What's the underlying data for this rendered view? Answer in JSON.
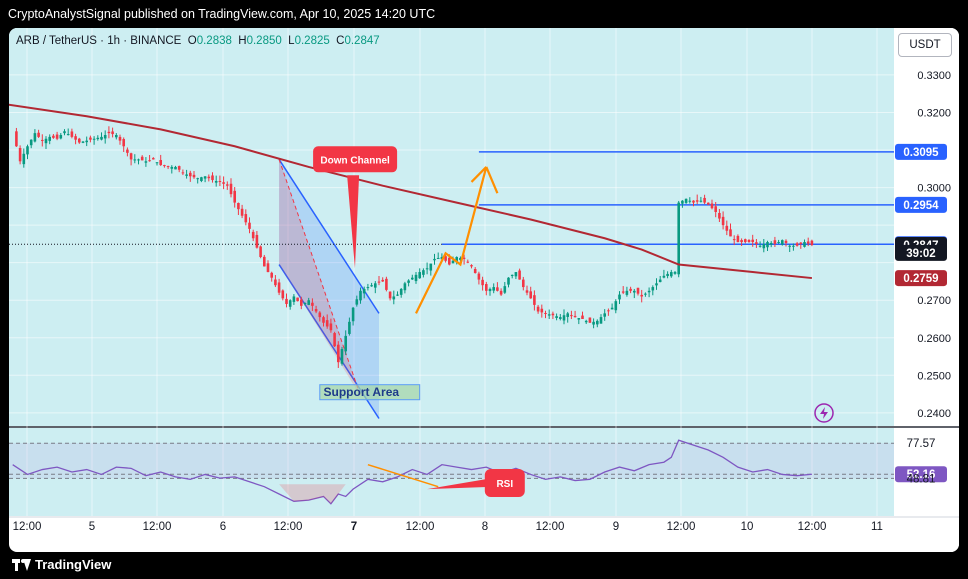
{
  "header": {
    "publisher_line": "CryptoAnalystSignal published on TradingView.com, Apr 10, 2025 14:20 UTC"
  },
  "footer": {
    "brand": "TradingView"
  },
  "legend": {
    "symbol": "ARB / TetherUS · 1h · BINANCE",
    "o_label": "O",
    "o": "0.2838",
    "h_label": "H",
    "h": "0.2850",
    "l_label": "L",
    "l": "0.2825",
    "c_label": "C",
    "c": "0.2847"
  },
  "currency_button": "USDT",
  "colors": {
    "up": "#089981",
    "down": "#f23645",
    "ma": "#b22833",
    "line_blue": "#2962ff",
    "arrow_orange": "#ff8f00",
    "rsi": "#7e57c2",
    "bg_teal": "#cdeef2"
  },
  "chart_data": [
    {
      "type": "candlestick",
      "title": "",
      "symbol": "ARB / TetherUS",
      "timeframe": "1h",
      "exchange": "BINANCE",
      "ohlc_last": {
        "open": 0.2838,
        "high": 0.285,
        "low": 0.2825,
        "close": 0.2847
      },
      "ylim": [
        0.2365,
        0.3425
      ],
      "y_ticks": [
        0.33,
        0.32,
        0.31,
        0.3,
        0.29,
        0.28,
        0.27,
        0.26,
        0.25,
        0.24
      ],
      "y_tick_labels": [
        "0.3300",
        "0.3200",
        "",
        "0.3000",
        "",
        "",
        "0.2700",
        "0.2600",
        "0.2500",
        "0.2400"
      ],
      "x_ticks": [
        "12:00",
        "5",
        "12:00",
        "6",
        "12:00",
        "7",
        "12:00",
        "8",
        "12:00",
        "9",
        "12:00",
        "10",
        "12:00",
        "11"
      ],
      "close_path": [
        [
          0,
          0.315
        ],
        [
          2,
          0.307
        ],
        [
          4,
          0.311
        ],
        [
          6,
          0.3145
        ],
        [
          8,
          0.3125
        ],
        [
          10,
          0.3135
        ],
        [
          12,
          0.313
        ],
        [
          14,
          0.315
        ],
        [
          16,
          0.3135
        ],
        [
          18,
          0.312
        ],
        [
          20,
          0.3125
        ],
        [
          22,
          0.313
        ],
        [
          24,
          0.3135
        ],
        [
          26,
          0.3145
        ],
        [
          28,
          0.314
        ],
        [
          30,
          0.311
        ],
        [
          32,
          0.3075
        ],
        [
          34,
          0.3075
        ],
        [
          36,
          0.307
        ],
        [
          38,
          0.3075
        ],
        [
          40,
          0.306
        ],
        [
          42,
          0.3055
        ],
        [
          44,
          0.3055
        ],
        [
          46,
          0.304
        ],
        [
          48,
          0.303
        ],
        [
          50,
          0.3025
        ],
        [
          52,
          0.303
        ],
        [
          54,
          0.302
        ],
        [
          56,
          0.3015
        ],
        [
          58,
          0.3005
        ],
        [
          60,
          0.296
        ],
        [
          62,
          0.2925
        ],
        [
          64,
          0.289
        ],
        [
          66,
          0.284
        ],
        [
          68,
          0.279
        ],
        [
          70,
          0.276
        ],
        [
          72,
          0.272
        ],
        [
          74,
          0.269
        ],
        [
          76,
          0.271
        ],
        [
          78,
          0.2685
        ],
        [
          80,
          0.27
        ],
        [
          82,
          0.267
        ],
        [
          84,
          0.264
        ],
        [
          86,
          0.262
        ],
        [
          88,
          0.2535
        ],
        [
          90,
          0.2605
        ],
        [
          92,
          0.268
        ],
        [
          94,
          0.2725
        ],
        [
          96,
          0.2735
        ],
        [
          98,
          0.2745
        ],
        [
          100,
          0.275
        ],
        [
          102,
          0.2705
        ],
        [
          104,
          0.2715
        ],
        [
          106,
          0.2745
        ],
        [
          108,
          0.276
        ],
        [
          110,
          0.2775
        ],
        [
          112,
          0.2785
        ],
        [
          114,
          0.281
        ],
        [
          116,
          0.2815
        ],
        [
          118,
          0.2795
        ],
        [
          120,
          0.2815
        ],
        [
          122,
          0.281
        ],
        [
          124,
          0.279
        ],
        [
          126,
          0.2755
        ],
        [
          128,
          0.2725
        ],
        [
          130,
          0.2735
        ],
        [
          132,
          0.2715
        ],
        [
          134,
          0.276
        ],
        [
          136,
          0.2775
        ],
        [
          138,
          0.2735
        ],
        [
          140,
          0.2705
        ],
        [
          142,
          0.267
        ],
        [
          144,
          0.2665
        ],
        [
          146,
          0.266
        ],
        [
          148,
          0.2655
        ],
        [
          150,
          0.2665
        ],
        [
          152,
          0.2655
        ],
        [
          154,
          0.265
        ],
        [
          156,
          0.264
        ],
        [
          158,
          0.2645
        ],
        [
          160,
          0.2665
        ],
        [
          162,
          0.268
        ],
        [
          164,
          0.2715
        ],
        [
          166,
          0.2725
        ],
        [
          168,
          0.2725
        ],
        [
          170,
          0.271
        ],
        [
          172,
          0.2725
        ],
        [
          174,
          0.2745
        ],
        [
          176,
          0.2765
        ],
        [
          178,
          0.2775
        ],
        [
          179,
          0.2775
        ],
        [
          180,
          0.296
        ],
        [
          182,
          0.297
        ],
        [
          184,
          0.296
        ],
        [
          186,
          0.2965
        ],
        [
          188,
          0.2955
        ],
        [
          190,
          0.2935
        ],
        [
          192,
          0.29
        ],
        [
          194,
          0.287
        ],
        [
          196,
          0.2855
        ],
        [
          198,
          0.2855
        ],
        [
          200,
          0.2855
        ],
        [
          202,
          0.2845
        ],
        [
          204,
          0.2855
        ],
        [
          206,
          0.285
        ],
        [
          208,
          0.286
        ],
        [
          210,
          0.2845
        ],
        [
          212,
          0.2845
        ],
        [
          214,
          0.2855
        ],
        [
          216,
          0.2847
        ]
      ],
      "moving_average": [
        [
          -4,
          0.3225
        ],
        [
          20,
          0.319
        ],
        [
          40,
          0.3155
        ],
        [
          60,
          0.311
        ],
        [
          80,
          0.3055
        ],
        [
          100,
          0.3005
        ],
        [
          120,
          0.296
        ],
        [
          140,
          0.2915
        ],
        [
          160,
          0.2865
        ],
        [
          170,
          0.2835
        ],
        [
          180,
          0.2795
        ],
        [
          200,
          0.2775
        ],
        [
          216,
          0.2759
        ]
      ],
      "price_labels": [
        {
          "text": "0.3095",
          "value": 0.3095,
          "style": "blue"
        },
        {
          "text": "0.2954",
          "value": 0.2954,
          "style": "blue"
        },
        {
          "text": "0.2849",
          "value": 0.2849,
          "style": "blue"
        },
        {
          "text": "0.2847",
          "value": 0.2847,
          "style": "dark"
        },
        {
          "text": "39:02",
          "value": 0.2826,
          "style": "dark"
        },
        {
          "text": "0.2759",
          "value": 0.2759,
          "style": "red"
        }
      ],
      "horizontal_lines": [
        {
          "value": 0.3095,
          "x_start": 126
        },
        {
          "value": 0.2954,
          "x_start": 126
        },
        {
          "value": 0.2849,
          "x_start": 116,
          "dotted_left": true
        }
      ],
      "down_channel": {
        "upper": [
          [
            72,
            0.3075
          ],
          [
            99,
            0.2665
          ]
        ],
        "lower": [
          [
            72,
            0.2795
          ],
          [
            99,
            0.2385
          ]
        ]
      },
      "projection_arrow": [
        [
          109,
          0.2665
        ],
        [
          117,
          0.2825
        ],
        [
          121,
          0.2795
        ],
        [
          128,
          0.3055
        ],
        [
          131,
          0.2985
        ]
      ],
      "annotations": {
        "down_channel_label": "Down Channel",
        "support_label": "Support Area",
        "rsi_label": "RSI"
      }
    },
    {
      "type": "line",
      "title": "RSI",
      "ylim": [
        18,
        90
      ],
      "levels": [
        77.57,
        52.16,
        48.81
      ],
      "level_labels": [
        "77.57",
        "52.16",
        "48.81"
      ],
      "values": [
        [
          0,
          60
        ],
        [
          4,
          52
        ],
        [
          8,
          56
        ],
        [
          12,
          58
        ],
        [
          16,
          54
        ],
        [
          20,
          56
        ],
        [
          24,
          52
        ],
        [
          28,
          58
        ],
        [
          32,
          57
        ],
        [
          36,
          51
        ],
        [
          40,
          54
        ],
        [
          44,
          50
        ],
        [
          48,
          48
        ],
        [
          52,
          52
        ],
        [
          56,
          49
        ],
        [
          60,
          50
        ],
        [
          64,
          46
        ],
        [
          68,
          42
        ],
        [
          72,
          36
        ],
        [
          76,
          30
        ],
        [
          80,
          31
        ],
        [
          84,
          34
        ],
        [
          86,
          28
        ],
        [
          88,
          36
        ],
        [
          90,
          34
        ],
        [
          92,
          40
        ],
        [
          96,
          48
        ],
        [
          100,
          46
        ],
        [
          104,
          50
        ],
        [
          108,
          56
        ],
        [
          112,
          52
        ],
        [
          116,
          60
        ],
        [
          120,
          58
        ],
        [
          124,
          56
        ],
        [
          128,
          58
        ],
        [
          132,
          53
        ],
        [
          136,
          57
        ],
        [
          140,
          52
        ],
        [
          144,
          48
        ],
        [
          148,
          50
        ],
        [
          152,
          47
        ],
        [
          156,
          48
        ],
        [
          160,
          54
        ],
        [
          164,
          58
        ],
        [
          168,
          55
        ],
        [
          172,
          60
        ],
        [
          176,
          62
        ],
        [
          178,
          66
        ],
        [
          180,
          80
        ],
        [
          184,
          76
        ],
        [
          188,
          72
        ],
        [
          192,
          66
        ],
        [
          196,
          58
        ],
        [
          200,
          54
        ],
        [
          204,
          56
        ],
        [
          208,
          52
        ],
        [
          212,
          51
        ],
        [
          216,
          52.16
        ]
      ]
    }
  ]
}
